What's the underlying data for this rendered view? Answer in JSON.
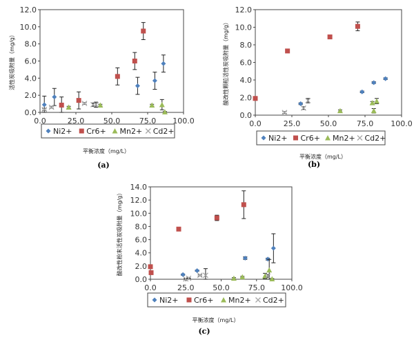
{
  "colors": {
    "Ni2+": "#4f81bd",
    "Cr6+": "#c0504d",
    "Mn2+": "#9bbb59",
    "Cd2+": "#a6a6a6",
    "error_bar": "#222222"
  },
  "chart_data": [
    {
      "type": "scatter",
      "caption": "(a)",
      "xlabel": "平衡浓度（mg/L）",
      "ylabel": "活性炭吸附量（mg/g）",
      "xlim": [
        0,
        100
      ],
      "ylim": [
        0,
        12
      ],
      "xticks": [
        "0.0",
        "25.0",
        "50.0",
        "75.0",
        "100.0"
      ],
      "yticks": [
        "0.0",
        "2.0",
        "4.0",
        "6.0",
        "8.0",
        "10.0",
        "12.0"
      ],
      "legend": "bottom",
      "series": [
        {
          "name": "Ni2+",
          "marker": "diamond",
          "x": [
            3,
            10,
            68,
            80,
            86
          ],
          "y": [
            0.9,
            1.8,
            3.1,
            3.7,
            5.7
          ],
          "err": [
            1.0,
            1.0,
            1.0,
            1.0,
            1.0
          ]
        },
        {
          "name": "Cr6+",
          "marker": "square",
          "x": [
            15,
            27,
            54,
            66,
            72
          ],
          "y": [
            0.85,
            1.4,
            4.2,
            6.0,
            9.5
          ],
          "err": [
            0.95,
            1.0,
            1.0,
            1.0,
            1.0
          ]
        },
        {
          "name": "Mn2+",
          "marker": "triangle",
          "x": [
            20,
            42,
            78,
            85,
            87
          ],
          "y": [
            0.6,
            0.85,
            0.85,
            0.9,
            0.05
          ],
          "err": [
            0.1,
            0.1,
            0.1,
            0.6,
            0.05
          ]
        },
        {
          "name": "Cd2+",
          "marker": "x",
          "x": [
            3,
            8,
            31,
            37,
            39
          ],
          "y": [
            0.35,
            0.6,
            1.05,
            0.9,
            0.9
          ],
          "err": [
            0.1,
            0.1,
            0.1,
            0.2,
            0.3
          ]
        }
      ]
    },
    {
      "type": "scatter",
      "caption": "(b)",
      "xlabel": "平衡浓度（mg/L）",
      "ylabel": "酸改性颗粒活性炭吸附量（mg/g）",
      "xlim": [
        0,
        100
      ],
      "ylim": [
        0,
        12
      ],
      "xticks": [
        "0.0",
        "25.0",
        "50.0",
        "75.0",
        "100.0"
      ],
      "yticks": [
        "0.0",
        "2.0",
        "4.0",
        "6.0",
        "8.0",
        "10.0",
        "12.0"
      ],
      "legend": "bottom",
      "series": [
        {
          "name": "Ni2+",
          "marker": "diamond",
          "x": [
            31,
            73,
            81,
            89
          ],
          "y": [
            1.3,
            2.65,
            3.7,
            4.15
          ],
          "err": [
            0.1,
            0.1,
            0.1,
            0.1
          ]
        },
        {
          "name": "Cr6+",
          "marker": "square",
          "x": [
            0,
            22,
            51,
            70
          ],
          "y": [
            1.9,
            7.3,
            8.9,
            10.1
          ],
          "err": [
            0.1,
            0.1,
            0.1,
            0.5
          ]
        },
        {
          "name": "Mn2+",
          "marker": "triangle",
          "x": [
            58,
            80,
            81,
            83
          ],
          "y": [
            0.5,
            1.4,
            0.5,
            1.6
          ],
          "err": [
            0.1,
            0.15,
            0.25,
            0.3
          ]
        },
        {
          "name": "Cd2+",
          "marker": "x",
          "x": [
            20,
            33,
            36
          ],
          "y": [
            0.3,
            0.8,
            1.65
          ],
          "err": [
            0.1,
            0.15,
            0.25
          ]
        }
      ]
    },
    {
      "type": "scatter",
      "caption": "(c)",
      "xlabel": "平衡浓度（mg/L）",
      "ylabel": "酸改性粉末活性炭吸附量（mg/g）",
      "xlim": [
        0,
        100
      ],
      "ylim": [
        0,
        14
      ],
      "xticks": [
        "0.0",
        "25.0",
        "50.0",
        "75.0",
        "100.0"
      ],
      "yticks": [
        "0.0",
        "2.0",
        "4.0",
        "6.0",
        "8.0",
        "10.0",
        "12.0",
        "14.0"
      ],
      "legend": "bottom",
      "series": [
        {
          "name": "Ni2+",
          "marker": "diamond",
          "x": [
            23,
            33,
            67,
            83,
            87
          ],
          "y": [
            0.7,
            1.3,
            3.2,
            3.05,
            4.7
          ],
          "err": [
            0.1,
            0.1,
            0.2,
            0.15,
            2.2
          ]
        },
        {
          "name": "Cr6+",
          "marker": "square",
          "x": [
            0,
            0.5,
            20,
            47,
            66
          ],
          "y": [
            1.9,
            1.0,
            7.6,
            9.3,
            11.3
          ],
          "err": [
            0.1,
            0.1,
            0.1,
            0.4,
            2.1
          ]
        },
        {
          "name": "Mn2+",
          "marker": "triangle",
          "x": [
            59,
            65,
            81,
            84,
            86
          ],
          "y": [
            0.15,
            0.35,
            0.5,
            1.4,
            0.05
          ],
          "err": [
            0.1,
            0.1,
            0.4,
            1.6,
            0.05
          ]
        },
        {
          "name": "Cd2+",
          "marker": "x",
          "x": [
            25,
            27,
            35,
            39,
            83
          ],
          "y": [
            0.05,
            0.15,
            0.6,
            0.6,
            0.5
          ],
          "err": [
            0.05,
            0.05,
            0.1,
            1.0,
            0.2
          ]
        }
      ]
    }
  ]
}
